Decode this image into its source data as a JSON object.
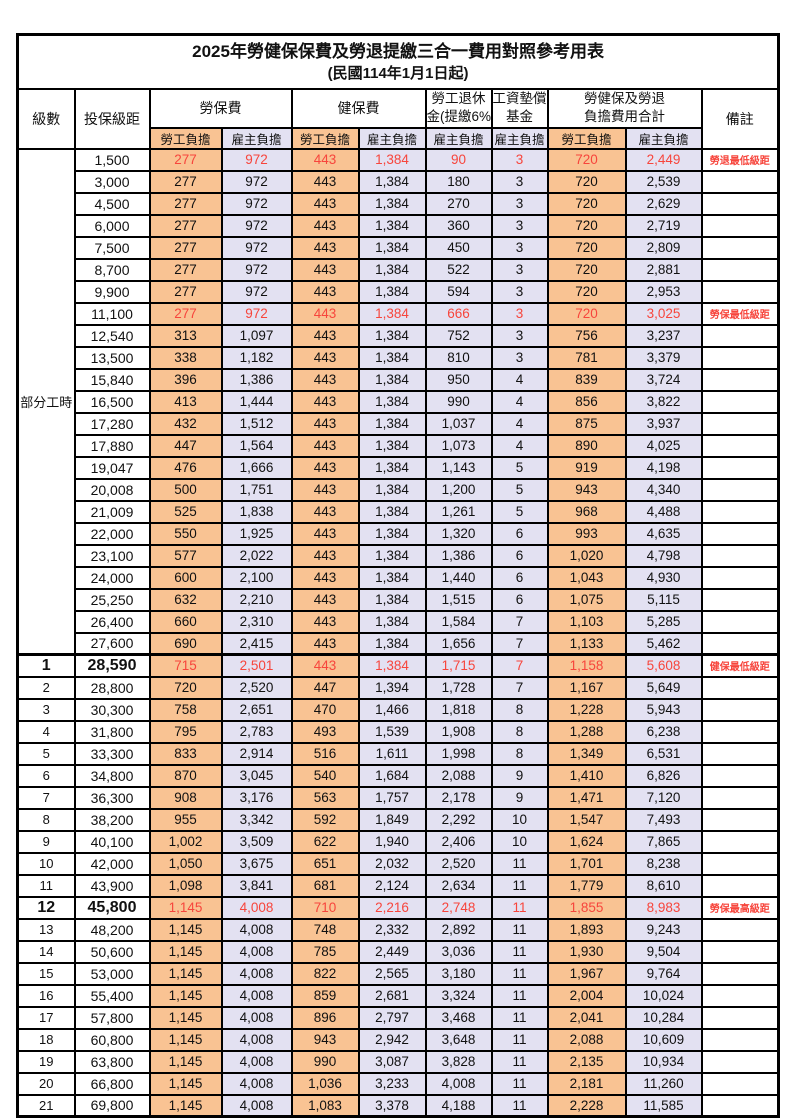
{
  "title": "2025年勞健保保費及勞退提繳三合一費用對照參考用表",
  "subtitle": "(民國114年1月1日起)",
  "header": {
    "level": "級數",
    "bracket": "投保級距",
    "labor_insurance": "勞保費",
    "health_insurance": "健保費",
    "pension_line1": "勞工退休",
    "pension_line2": "金(提繳6%)",
    "wage_fund_line1": "工資墊償",
    "wage_fund_line2": "基金",
    "total_line1": "勞健保及勞退",
    "total_line2": "負擔費用合計",
    "remark": "備註",
    "employee": "勞工負擔",
    "employer": "雇主負擔"
  },
  "part_time_label": "部分工時",
  "colors": {
    "employee_bg": "#f9c393",
    "employer_bg": "#e3e1f2",
    "highlight_text": "#f7453c"
  },
  "rows": [
    {
      "section": "part_time",
      "level": "",
      "bracket": "1,500",
      "values": [
        "277",
        "972",
        "443",
        "1,384",
        "90",
        "3",
        "720",
        "2,449"
      ],
      "remark": "勞退最低級距",
      "highlight": true,
      "emphasis": false
    },
    {
      "section": "part_time",
      "level": "",
      "bracket": "3,000",
      "values": [
        "277",
        "972",
        "443",
        "1,384",
        "180",
        "3",
        "720",
        "2,539"
      ],
      "remark": "",
      "highlight": false,
      "emphasis": false
    },
    {
      "section": "part_time",
      "level": "",
      "bracket": "4,500",
      "values": [
        "277",
        "972",
        "443",
        "1,384",
        "270",
        "3",
        "720",
        "2,629"
      ],
      "remark": "",
      "highlight": false,
      "emphasis": false
    },
    {
      "section": "part_time",
      "level": "",
      "bracket": "6,000",
      "values": [
        "277",
        "972",
        "443",
        "1,384",
        "360",
        "3",
        "720",
        "2,719"
      ],
      "remark": "",
      "highlight": false,
      "emphasis": false
    },
    {
      "section": "part_time",
      "level": "",
      "bracket": "7,500",
      "values": [
        "277",
        "972",
        "443",
        "1,384",
        "450",
        "3",
        "720",
        "2,809"
      ],
      "remark": "",
      "highlight": false,
      "emphasis": false
    },
    {
      "section": "part_time",
      "level": "",
      "bracket": "8,700",
      "values": [
        "277",
        "972",
        "443",
        "1,384",
        "522",
        "3",
        "720",
        "2,881"
      ],
      "remark": "",
      "highlight": false,
      "emphasis": false
    },
    {
      "section": "part_time",
      "level": "",
      "bracket": "9,900",
      "values": [
        "277",
        "972",
        "443",
        "1,384",
        "594",
        "3",
        "720",
        "2,953"
      ],
      "remark": "",
      "highlight": false,
      "emphasis": false
    },
    {
      "section": "part_time",
      "level": "",
      "bracket": "11,100",
      "values": [
        "277",
        "972",
        "443",
        "1,384",
        "666",
        "3",
        "720",
        "3,025"
      ],
      "remark": "勞保最低級距",
      "highlight": true,
      "emphasis": false
    },
    {
      "section": "part_time",
      "level": "",
      "bracket": "12,540",
      "values": [
        "313",
        "1,097",
        "443",
        "1,384",
        "752",
        "3",
        "756",
        "3,237"
      ],
      "remark": "",
      "highlight": false,
      "emphasis": false
    },
    {
      "section": "part_time",
      "level": "",
      "bracket": "13,500",
      "values": [
        "338",
        "1,182",
        "443",
        "1,384",
        "810",
        "3",
        "781",
        "3,379"
      ],
      "remark": "",
      "highlight": false,
      "emphasis": false
    },
    {
      "section": "part_time",
      "level": "",
      "bracket": "15,840",
      "values": [
        "396",
        "1,386",
        "443",
        "1,384",
        "950",
        "4",
        "839",
        "3,724"
      ],
      "remark": "",
      "highlight": false,
      "emphasis": false
    },
    {
      "section": "part_time",
      "level": "",
      "bracket": "16,500",
      "values": [
        "413",
        "1,444",
        "443",
        "1,384",
        "990",
        "4",
        "856",
        "3,822"
      ],
      "remark": "",
      "highlight": false,
      "emphasis": false
    },
    {
      "section": "part_time",
      "level": "",
      "bracket": "17,280",
      "values": [
        "432",
        "1,512",
        "443",
        "1,384",
        "1,037",
        "4",
        "875",
        "3,937"
      ],
      "remark": "",
      "highlight": false,
      "emphasis": false
    },
    {
      "section": "part_time",
      "level": "",
      "bracket": "17,880",
      "values": [
        "447",
        "1,564",
        "443",
        "1,384",
        "1,073",
        "4",
        "890",
        "4,025"
      ],
      "remark": "",
      "highlight": false,
      "emphasis": false
    },
    {
      "section": "part_time",
      "level": "",
      "bracket": "19,047",
      "values": [
        "476",
        "1,666",
        "443",
        "1,384",
        "1,143",
        "5",
        "919",
        "4,198"
      ],
      "remark": "",
      "highlight": false,
      "emphasis": false
    },
    {
      "section": "part_time",
      "level": "",
      "bracket": "20,008",
      "values": [
        "500",
        "1,751",
        "443",
        "1,384",
        "1,200",
        "5",
        "943",
        "4,340"
      ],
      "remark": "",
      "highlight": false,
      "emphasis": false
    },
    {
      "section": "part_time",
      "level": "",
      "bracket": "21,009",
      "values": [
        "525",
        "1,838",
        "443",
        "1,384",
        "1,261",
        "5",
        "968",
        "4,488"
      ],
      "remark": "",
      "highlight": false,
      "emphasis": false
    },
    {
      "section": "part_time",
      "level": "",
      "bracket": "22,000",
      "values": [
        "550",
        "1,925",
        "443",
        "1,384",
        "1,320",
        "6",
        "993",
        "4,635"
      ],
      "remark": "",
      "highlight": false,
      "emphasis": false
    },
    {
      "section": "part_time",
      "level": "",
      "bracket": "23,100",
      "values": [
        "577",
        "2,022",
        "443",
        "1,384",
        "1,386",
        "6",
        "1,020",
        "4,798"
      ],
      "remark": "",
      "highlight": false,
      "emphasis": false
    },
    {
      "section": "part_time",
      "level": "",
      "bracket": "24,000",
      "values": [
        "600",
        "2,100",
        "443",
        "1,384",
        "1,440",
        "6",
        "1,043",
        "4,930"
      ],
      "remark": "",
      "highlight": false,
      "emphasis": false
    },
    {
      "section": "part_time",
      "level": "",
      "bracket": "25,250",
      "values": [
        "632",
        "2,210",
        "443",
        "1,384",
        "1,515",
        "6",
        "1,075",
        "5,115"
      ],
      "remark": "",
      "highlight": false,
      "emphasis": false
    },
    {
      "section": "part_time",
      "level": "",
      "bracket": "26,400",
      "values": [
        "660",
        "2,310",
        "443",
        "1,384",
        "1,584",
        "7",
        "1,103",
        "5,285"
      ],
      "remark": "",
      "highlight": false,
      "emphasis": false
    },
    {
      "section": "part_time",
      "level": "",
      "bracket": "27,600",
      "values": [
        "690",
        "2,415",
        "443",
        "1,384",
        "1,656",
        "7",
        "1,133",
        "5,462"
      ],
      "remark": "",
      "highlight": false,
      "emphasis": false
    },
    {
      "section": "graded",
      "level": "1",
      "bracket": "28,590",
      "values": [
        "715",
        "2,501",
        "443",
        "1,384",
        "1,715",
        "7",
        "1,158",
        "5,608"
      ],
      "remark": "健保最低級距",
      "highlight": true,
      "emphasis": true
    },
    {
      "section": "graded",
      "level": "2",
      "bracket": "28,800",
      "values": [
        "720",
        "2,520",
        "447",
        "1,394",
        "1,728",
        "7",
        "1,167",
        "5,649"
      ],
      "remark": "",
      "highlight": false,
      "emphasis": false
    },
    {
      "section": "graded",
      "level": "3",
      "bracket": "30,300",
      "values": [
        "758",
        "2,651",
        "470",
        "1,466",
        "1,818",
        "8",
        "1,228",
        "5,943"
      ],
      "remark": "",
      "highlight": false,
      "emphasis": false
    },
    {
      "section": "graded",
      "level": "4",
      "bracket": "31,800",
      "values": [
        "795",
        "2,783",
        "493",
        "1,539",
        "1,908",
        "8",
        "1,288",
        "6,238"
      ],
      "remark": "",
      "highlight": false,
      "emphasis": false
    },
    {
      "section": "graded",
      "level": "5",
      "bracket": "33,300",
      "values": [
        "833",
        "2,914",
        "516",
        "1,611",
        "1,998",
        "8",
        "1,349",
        "6,531"
      ],
      "remark": "",
      "highlight": false,
      "emphasis": false
    },
    {
      "section": "graded",
      "level": "6",
      "bracket": "34,800",
      "values": [
        "870",
        "3,045",
        "540",
        "1,684",
        "2,088",
        "9",
        "1,410",
        "6,826"
      ],
      "remark": "",
      "highlight": false,
      "emphasis": false
    },
    {
      "section": "graded",
      "level": "7",
      "bracket": "36,300",
      "values": [
        "908",
        "3,176",
        "563",
        "1,757",
        "2,178",
        "9",
        "1,471",
        "7,120"
      ],
      "remark": "",
      "highlight": false,
      "emphasis": false
    },
    {
      "section": "graded",
      "level": "8",
      "bracket": "38,200",
      "values": [
        "955",
        "3,342",
        "592",
        "1,849",
        "2,292",
        "10",
        "1,547",
        "7,493"
      ],
      "remark": "",
      "highlight": false,
      "emphasis": false
    },
    {
      "section": "graded",
      "level": "9",
      "bracket": "40,100",
      "values": [
        "1,002",
        "3,509",
        "622",
        "1,940",
        "2,406",
        "10",
        "1,624",
        "7,865"
      ],
      "remark": "",
      "highlight": false,
      "emphasis": false
    },
    {
      "section": "graded",
      "level": "10",
      "bracket": "42,000",
      "values": [
        "1,050",
        "3,675",
        "651",
        "2,032",
        "2,520",
        "11",
        "1,701",
        "8,238"
      ],
      "remark": "",
      "highlight": false,
      "emphasis": false
    },
    {
      "section": "graded",
      "level": "11",
      "bracket": "43,900",
      "values": [
        "1,098",
        "3,841",
        "681",
        "2,124",
        "2,634",
        "11",
        "1,779",
        "8,610"
      ],
      "remark": "",
      "highlight": false,
      "emphasis": false
    },
    {
      "section": "graded",
      "level": "12",
      "bracket": "45,800",
      "values": [
        "1,145",
        "4,008",
        "710",
        "2,216",
        "2,748",
        "11",
        "1,855",
        "8,983"
      ],
      "remark": "勞保最高級距",
      "highlight": true,
      "emphasis": true
    },
    {
      "section": "graded",
      "level": "13",
      "bracket": "48,200",
      "values": [
        "1,145",
        "4,008",
        "748",
        "2,332",
        "2,892",
        "11",
        "1,893",
        "9,243"
      ],
      "remark": "",
      "highlight": false,
      "emphasis": false
    },
    {
      "section": "graded",
      "level": "14",
      "bracket": "50,600",
      "values": [
        "1,145",
        "4,008",
        "785",
        "2,449",
        "3,036",
        "11",
        "1,930",
        "9,504"
      ],
      "remark": "",
      "highlight": false,
      "emphasis": false
    },
    {
      "section": "graded",
      "level": "15",
      "bracket": "53,000",
      "values": [
        "1,145",
        "4,008",
        "822",
        "2,565",
        "3,180",
        "11",
        "1,967",
        "9,764"
      ],
      "remark": "",
      "highlight": false,
      "emphasis": false
    },
    {
      "section": "graded",
      "level": "16",
      "bracket": "55,400",
      "values": [
        "1,145",
        "4,008",
        "859",
        "2,681",
        "3,324",
        "11",
        "2,004",
        "10,024"
      ],
      "remark": "",
      "highlight": false,
      "emphasis": false
    },
    {
      "section": "graded",
      "level": "17",
      "bracket": "57,800",
      "values": [
        "1,145",
        "4,008",
        "896",
        "2,797",
        "3,468",
        "11",
        "2,041",
        "10,284"
      ],
      "remark": "",
      "highlight": false,
      "emphasis": false
    },
    {
      "section": "graded",
      "level": "18",
      "bracket": "60,800",
      "values": [
        "1,145",
        "4,008",
        "943",
        "2,942",
        "3,648",
        "11",
        "2,088",
        "10,609"
      ],
      "remark": "",
      "highlight": false,
      "emphasis": false
    },
    {
      "section": "graded",
      "level": "19",
      "bracket": "63,800",
      "values": [
        "1,145",
        "4,008",
        "990",
        "3,087",
        "3,828",
        "11",
        "2,135",
        "10,934"
      ],
      "remark": "",
      "highlight": false,
      "emphasis": false
    },
    {
      "section": "graded",
      "level": "20",
      "bracket": "66,800",
      "values": [
        "1,145",
        "4,008",
        "1,036",
        "3,233",
        "4,008",
        "11",
        "2,181",
        "11,260"
      ],
      "remark": "",
      "highlight": false,
      "emphasis": false
    },
    {
      "section": "graded",
      "level": "21",
      "bracket": "69,800",
      "values": [
        "1,145",
        "4,008",
        "1,083",
        "3,378",
        "4,188",
        "11",
        "2,228",
        "11,585"
      ],
      "remark": "",
      "highlight": false,
      "emphasis": false
    }
  ]
}
